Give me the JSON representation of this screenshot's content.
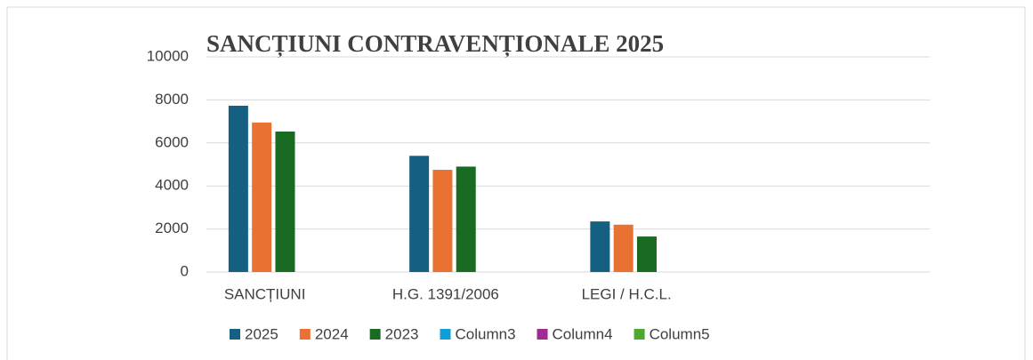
{
  "chart_data": {
    "type": "bar",
    "title": "SANCȚIUNI CONTRAVENȚIONALE 2025",
    "categories": [
      "SANCȚIUNI",
      "H.G. 1391/2006",
      "LEGI / H.C.L.",
      null
    ],
    "series": [
      {
        "name": "2025",
        "color": "#156082",
        "values": [
          7730,
          5400,
          2350,
          null
        ]
      },
      {
        "name": "2024",
        "color": "#e97132",
        "values": [
          6950,
          4750,
          2200,
          null
        ]
      },
      {
        "name": "2023",
        "color": "#196b24",
        "values": [
          6530,
          4900,
          1650,
          null
        ]
      },
      {
        "name": "Column3",
        "color": "#0f9ed5",
        "values": [
          null,
          null,
          null,
          null
        ]
      },
      {
        "name": "Column4",
        "color": "#a02b93",
        "values": [
          null,
          null,
          null,
          null
        ]
      },
      {
        "name": "Column5",
        "color": "#4ea72e",
        "values": [
          null,
          null,
          null,
          null
        ]
      }
    ],
    "ylim": [
      0,
      10000
    ],
    "yticks": [
      0,
      2000,
      4000,
      6000,
      8000,
      10000
    ],
    "grid": true,
    "legend": "bottom"
  }
}
